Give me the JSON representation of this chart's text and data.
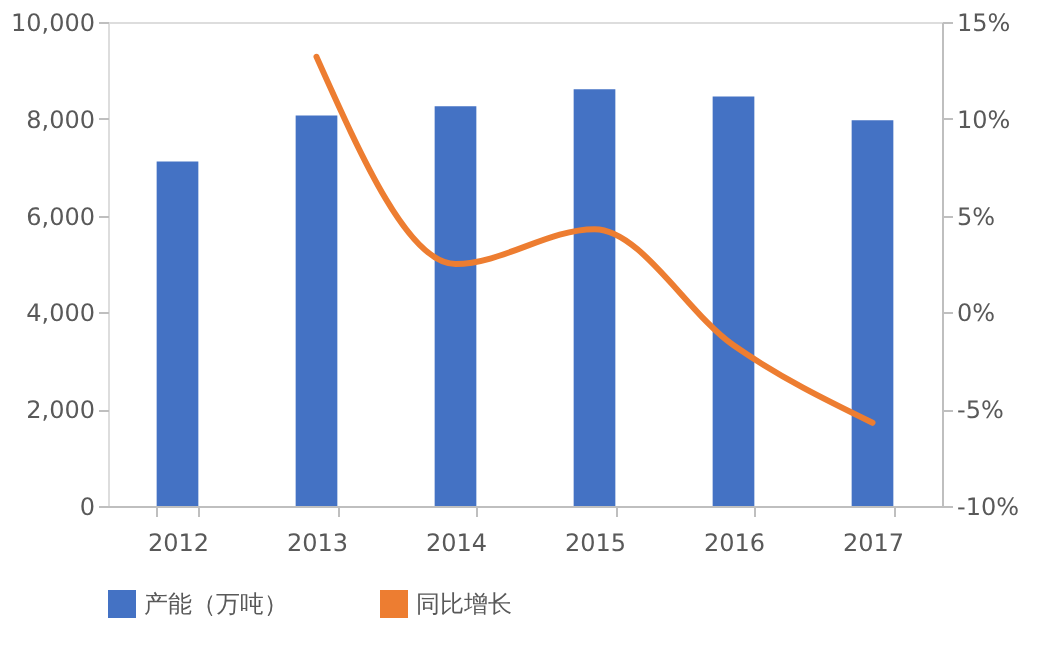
{
  "chart_data": {
    "type": "bar",
    "categories": [
      "2012",
      "2013",
      "2014",
      "2015",
      "2016",
      "2017"
    ],
    "series": [
      {
        "name": "产能（万吨）",
        "color": "#4472c4",
        "values": [
          7120,
          8070,
          8260,
          8610,
          8460,
          7970
        ]
      },
      {
        "name": "同比增长",
        "color": "#ed7d31",
        "type": "line",
        "axis": "y2",
        "values": [
          null,
          13.2,
          2.5,
          4.3,
          -1.7,
          -5.7
        ]
      }
    ],
    "ylim": [
      0,
      10000
    ],
    "yticks": [
      {
        "value": 0,
        "label": "0"
      },
      {
        "value": 2000,
        "label": "2,000"
      },
      {
        "value": 4000,
        "label": "4,000"
      },
      {
        "value": 6000,
        "label": "6,000"
      },
      {
        "value": 8000,
        "label": "8,000"
      },
      {
        "value": 10000,
        "label": "10,000"
      }
    ],
    "y2lim": [
      -10,
      15
    ],
    "y2ticks": [
      {
        "value": -10,
        "label": "-10%"
      },
      {
        "value": -5,
        "label": "-5%"
      },
      {
        "value": 0,
        "label": "0%"
      },
      {
        "value": 5,
        "label": "5%"
      },
      {
        "value": 10,
        "label": "10%"
      },
      {
        "value": 15,
        "label": "15%"
      }
    ],
    "legend": "bottom",
    "grid": false,
    "marker": "none",
    "line_style": "solid"
  }
}
